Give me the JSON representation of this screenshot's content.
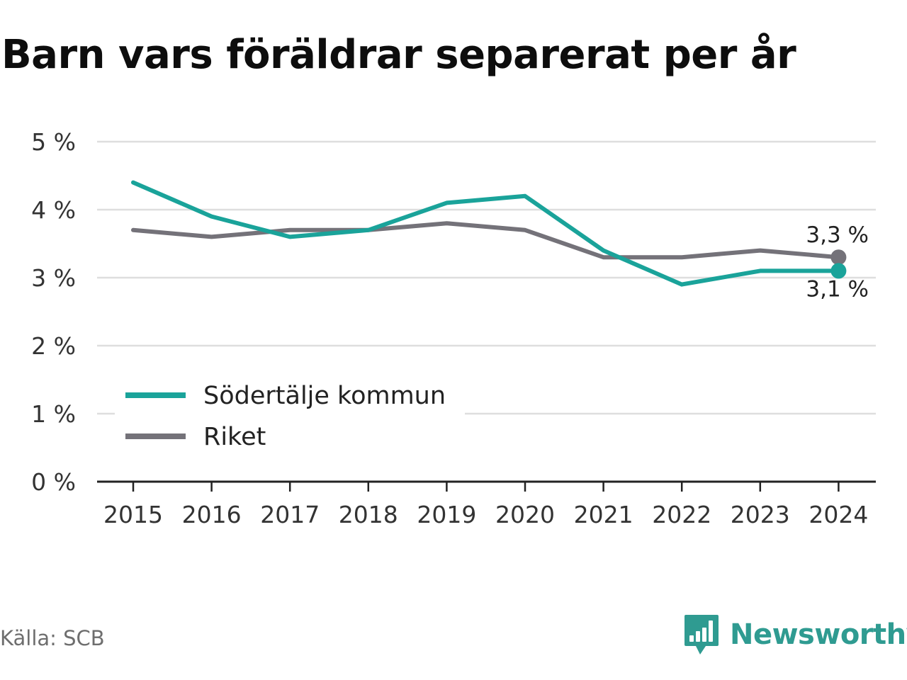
{
  "title": "Barn vars föräldrar separerat per år",
  "source": "Källa: SCB",
  "brand": {
    "name": "Newsworthy",
    "icon": "newsworthy-logo-icon",
    "color": "#2f9b91"
  },
  "chart_data": {
    "type": "line",
    "title": "Barn vars föräldrar separerat per år",
    "x": [
      "2015",
      "2016",
      "2017",
      "2018",
      "2019",
      "2020",
      "2021",
      "2022",
      "2023",
      "2024"
    ],
    "ylim": [
      0,
      5
    ],
    "yticks": [
      {
        "value": 0,
        "label": "0 %"
      },
      {
        "value": 1,
        "label": "1 %"
      },
      {
        "value": 2,
        "label": "2 %"
      },
      {
        "value": 3,
        "label": "3 %"
      },
      {
        "value": 4,
        "label": "4 %"
      },
      {
        "value": 5,
        "label": "5 %"
      }
    ],
    "grid": true,
    "legend": "bottom-left",
    "series": [
      {
        "name": "Södertälje kommun",
        "color": "#1aa39a",
        "values": [
          4.4,
          3.9,
          3.6,
          3.7,
          4.1,
          4.2,
          3.4,
          2.9,
          3.1,
          3.1
        ],
        "end_label": "3,1 %"
      },
      {
        "name": "Riket",
        "color": "#747279",
        "values": [
          3.7,
          3.6,
          3.7,
          3.7,
          3.8,
          3.7,
          3.3,
          3.3,
          3.4,
          3.3
        ],
        "end_label": "3,3 %"
      }
    ]
  }
}
